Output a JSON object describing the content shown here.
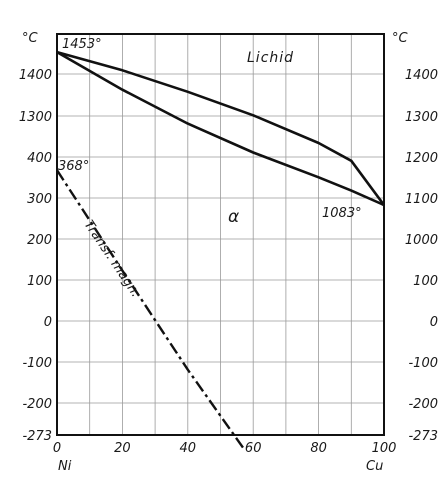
{
  "chart_data": {
    "type": "line",
    "title": "",
    "x_axis": {
      "range": [
        0,
        100
      ],
      "ticks": [
        "0",
        "20",
        "40",
        "60",
        "80",
        "100"
      ],
      "left_label": "Ni",
      "right_label": "Cu",
      "grid_step": 10
    },
    "y_axis": {
      "unit_left": "°C",
      "unit_right": "°C",
      "left_ticks": [
        "1400",
        "1300",
        "400",
        "300",
        "200",
        "100",
        "0",
        "-100",
        "-200",
        "-273"
      ],
      "right_ticks": [
        "1400",
        "1300",
        "1200",
        "1100",
        "1000",
        "100",
        "0",
        "-100",
        "-200",
        "-273"
      ],
      "note": "broken scale: upper part 1000–1460 °C, lower part -273–420 °C",
      "grid": true
    },
    "series": [
      {
        "name": "Lichid",
        "scale": "upper",
        "x": [
          0,
          20,
          40,
          60,
          80,
          90,
          100
        ],
        "y": [
          1453,
          1409,
          1357,
          1300,
          1233,
          1190,
          1083
        ]
      },
      {
        "name": "",
        "scale": "upper",
        "x": [
          0,
          20,
          40,
          60,
          80,
          90,
          100
        ],
        "y": [
          1453,
          1362,
          1280,
          1210,
          1150,
          1118,
          1083
        ]
      },
      {
        "name": "Transf. magn.",
        "scale": "lower",
        "style": "dash-dot",
        "x": [
          0,
          20,
          40,
          57
        ],
        "y": [
          368,
          125,
          -115,
          -305
        ]
      }
    ],
    "annotations": {
      "ni_melting": "1453°",
      "cu_melting": "1083°",
      "ni_curie": "368°",
      "phase": "α"
    }
  }
}
